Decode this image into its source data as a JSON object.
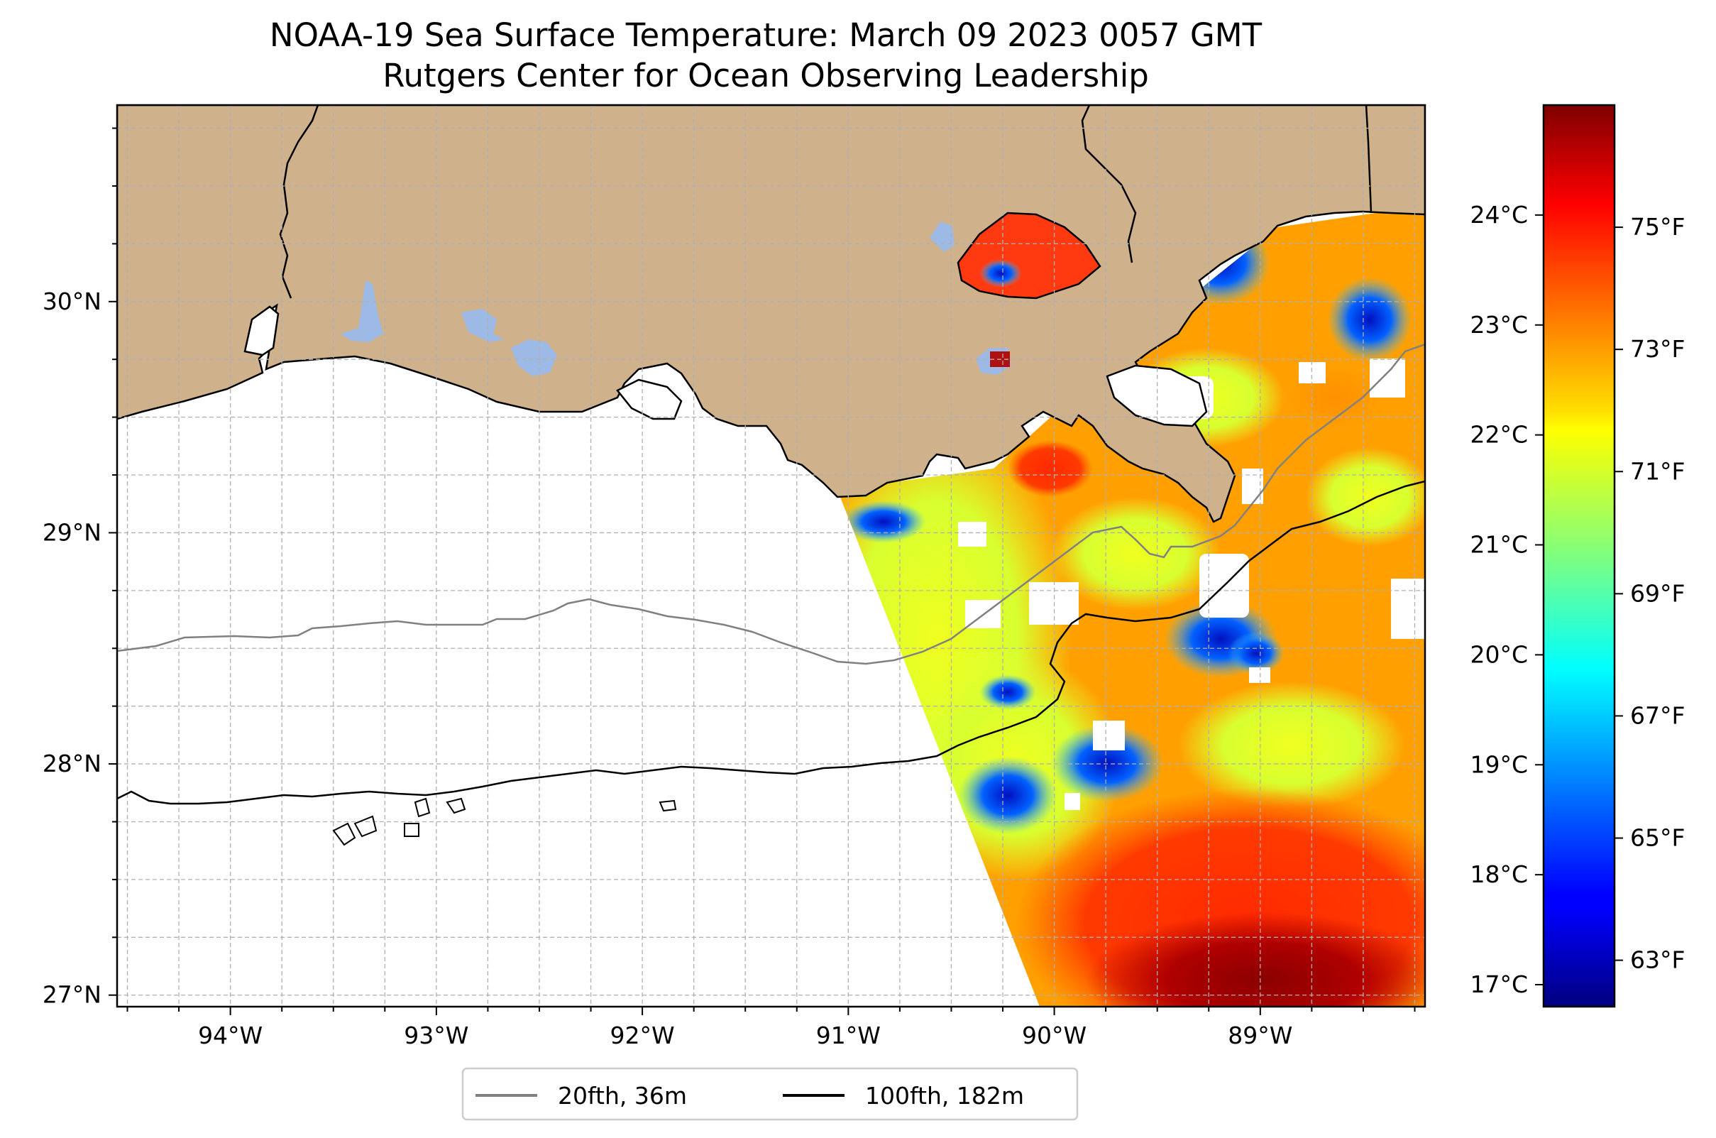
{
  "title": {
    "line1": "NOAA-19 Sea Surface Temperature: March 09 2023 0057 GMT",
    "line2": "Rutgers Center for Ocean Observing Leadership"
  },
  "map": {
    "lon_range": [
      -94.55,
      -88.2
    ],
    "lat_range": [
      26.95,
      30.85
    ],
    "lon_ticks": [
      {
        "value": -94,
        "label": "94°W"
      },
      {
        "value": -93,
        "label": "93°W"
      },
      {
        "value": -92,
        "label": "92°W"
      },
      {
        "value": -91,
        "label": "91°W"
      },
      {
        "value": -90,
        "label": "90°W"
      },
      {
        "value": -89,
        "label": "89°W"
      }
    ],
    "lat_ticks": [
      {
        "value": 27,
        "label": "27°N"
      },
      {
        "value": 28,
        "label": "28°N"
      },
      {
        "value": 29,
        "label": "29°N"
      },
      {
        "value": 30,
        "label": "30°N"
      }
    ],
    "grid": true,
    "colors": {
      "land": "#cfb28b",
      "water_body": "#9db9e5",
      "ocean_nodata": "#ffffff"
    }
  },
  "colorbar": {
    "colormap": "jet",
    "celsius_ticks": [
      {
        "value": 17,
        "label": "17°C"
      },
      {
        "value": 18,
        "label": "18°C"
      },
      {
        "value": 19,
        "label": "19°C"
      },
      {
        "value": 20,
        "label": "20°C"
      },
      {
        "value": 21,
        "label": "21°C"
      },
      {
        "value": 22,
        "label": "22°C"
      },
      {
        "value": 23,
        "label": "23°C"
      },
      {
        "value": 24,
        "label": "24°C"
      }
    ],
    "fahrenheit_ticks": [
      {
        "value": 63,
        "label": "63°F"
      },
      {
        "value": 65,
        "label": "65°F"
      },
      {
        "value": 67,
        "label": "67°F"
      },
      {
        "value": 69,
        "label": "69°F"
      },
      {
        "value": 71,
        "label": "71°F"
      },
      {
        "value": 73,
        "label": "73°F"
      },
      {
        "value": 75,
        "label": "75°F"
      }
    ],
    "range_c": [
      16.8,
      25.0
    ]
  },
  "legend": {
    "position": "bottom-center",
    "items": [
      {
        "label": "20fth, 36m",
        "color": "#808080"
      },
      {
        "label": "100fth, 182m",
        "color": "#000000"
      }
    ]
  }
}
